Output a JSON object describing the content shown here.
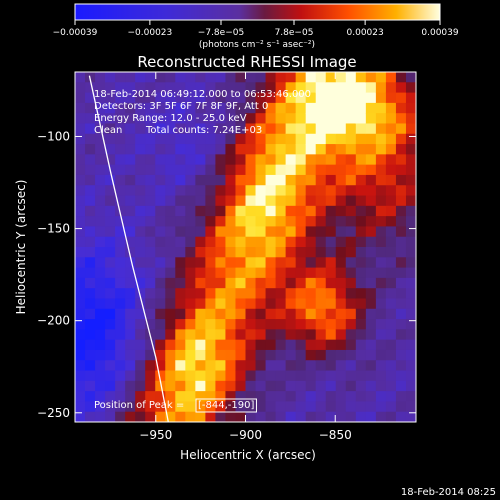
{
  "chart_data": {
    "type": "heatmap",
    "title": "Reconstructed RHESSI Image",
    "xlabel": "Heliocentric X (arcsec)",
    "ylabel": "Heliocentric Y (arcsec)",
    "xlim": [
      -995,
      -805
    ],
    "ylim": [
      -255,
      -65
    ],
    "x_ticks": [
      -950,
      -900,
      -850
    ],
    "x_tick_labels": [
      "−950",
      "−900",
      "−850"
    ],
    "y_ticks": [
      -100,
      -150,
      -200,
      -250
    ],
    "y_tick_labels": [
      "−100",
      "−150",
      "−200",
      "−250"
    ],
    "colorbar": {
      "min": -0.00039,
      "max": 0.00039,
      "ticks": [
        -0.00039,
        -0.00023,
        -7.8e-05,
        7.8e-05,
        0.00023,
        0.00039
      ],
      "tick_labels": [
        "−0.00039",
        "−0.00023",
        "−7.8e−05",
        "7.8e−05",
        "0.00023",
        "0.00039"
      ],
      "unit_label": "(photons cm⁻² s⁻¹ asec⁻²)"
    },
    "annotations": {
      "time_range": "18-Feb-2014 06:49:12.000 to 06:53:46.000",
      "detectors": "Detectors: 3F 5F 6F 7F 8F 9F, Att 0",
      "energy": "Energy Range: 12.0 - 25.0 keV",
      "clean": "Clean",
      "counts": "Total counts: 7.24E+03",
      "peak_prefix": "Position of Peak = ",
      "peak_value": "[-844,-190]"
    },
    "footer_timestamp": "18-Feb-2014 08:25",
    "colors": {
      "neg_strong": "#1d2cff",
      "neg_mid": "#5a2ed0",
      "background_purple": "#4b2fa0",
      "pos_low": "#c81414",
      "pos_mid": "#ff6a00",
      "pos_high": "#ffd000",
      "pos_max": "#ffffd8"
    },
    "limb_curve": [
      [
        -987,
        -67
      ],
      [
        -975,
        -120
      ],
      [
        -963,
        -170
      ],
      [
        -950,
        -220
      ],
      [
        -943,
        -255
      ]
    ]
  }
}
